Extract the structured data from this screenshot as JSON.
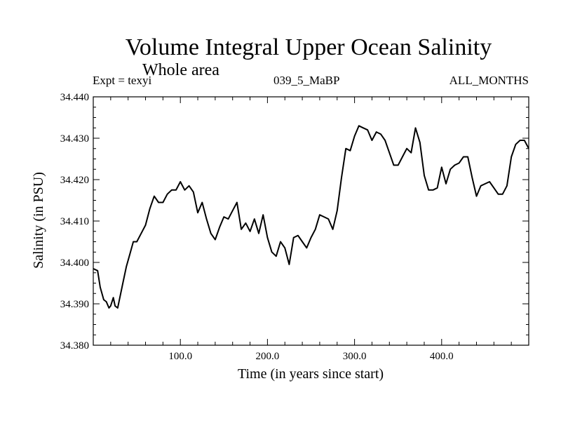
{
  "header": {
    "title": "Volume Integral Upper Ocean Salinity",
    "subtitle": "Whole area",
    "expt": "Expt = texyi",
    "run": "039_5_MaBP",
    "months": "ALL_MONTHS"
  },
  "chart_data": {
    "type": "line",
    "title": "Volume Integral Upper Ocean Salinity",
    "subtitle": "Whole area",
    "xlabel": "Time (in years since start)",
    "ylabel": "Salinity (in PSU)",
    "xlim": [
      0,
      500
    ],
    "ylim": [
      34.38,
      34.44
    ],
    "x_ticks": [
      100,
      200,
      300,
      400
    ],
    "x_tick_labels": [
      "100.0",
      "200.0",
      "300.0",
      "400.0"
    ],
    "y_ticks": [
      34.38,
      34.39,
      34.4,
      34.41,
      34.42,
      34.43,
      34.44
    ],
    "y_tick_labels": [
      "34.380",
      "34.390",
      "34.400",
      "34.410",
      "34.420",
      "34.430",
      "34.440"
    ],
    "grid": false,
    "legend": "none",
    "line_color": "#000000",
    "series": [
      {
        "x": [
          0,
          5,
          8,
          12,
          15,
          18,
          20,
          23,
          25,
          28,
          30,
          34,
          38,
          42,
          46,
          50,
          55,
          60,
          65,
          70,
          75,
          80,
          85,
          90,
          95,
          100,
          105,
          110,
          115,
          120,
          125,
          130,
          135,
          140,
          145,
          150,
          155,
          160,
          165,
          170,
          175,
          180,
          185,
          190,
          195,
          200,
          205,
          210,
          215,
          220,
          225,
          230,
          235,
          240,
          245,
          250,
          255,
          260,
          265,
          270,
          275,
          280,
          285,
          290,
          295,
          300,
          305,
          310,
          315,
          320,
          325,
          330,
          335,
          340,
          345,
          350,
          355,
          360,
          365,
          370,
          375,
          380,
          385,
          390,
          395,
          400,
          405,
          410,
          415,
          420,
          425,
          430,
          435,
          440,
          445,
          450,
          455,
          460,
          465,
          470,
          475,
          480,
          485,
          490,
          495,
          500
        ],
        "y": [
          34.3985,
          34.398,
          34.394,
          34.391,
          34.3905,
          34.389,
          34.3895,
          34.3915,
          34.3895,
          34.389,
          34.391,
          34.395,
          34.399,
          34.402,
          34.405,
          34.405,
          34.407,
          34.409,
          34.413,
          34.416,
          34.4145,
          34.4145,
          34.4165,
          34.4175,
          34.4175,
          34.4195,
          34.4175,
          34.4185,
          34.417,
          34.412,
          34.4145,
          34.4105,
          34.407,
          34.4055,
          34.4085,
          34.411,
          34.4105,
          34.4125,
          34.4145,
          34.408,
          34.4095,
          34.4075,
          34.4105,
          34.407,
          34.4115,
          34.406,
          34.4025,
          34.4015,
          34.405,
          34.4035,
          34.3995,
          34.406,
          34.4065,
          34.405,
          34.4035,
          34.406,
          34.408,
          34.4115,
          34.411,
          34.4105,
          34.408,
          34.4125,
          34.4205,
          34.4275,
          34.427,
          34.4305,
          34.433,
          34.4325,
          34.432,
          34.4295,
          34.4315,
          34.431,
          34.4295,
          34.4265,
          34.4235,
          34.4235,
          34.4255,
          34.4275,
          34.4265,
          34.4325,
          34.429,
          34.421,
          34.4175,
          34.4175,
          34.418,
          34.423,
          34.419,
          34.4225,
          34.4235,
          34.424,
          34.4255,
          34.4255,
          34.4205,
          34.416,
          34.4185,
          34.419,
          34.4195,
          34.418,
          34.4165,
          34.4165,
          34.4185,
          34.4255,
          34.4285,
          34.4295,
          34.4295,
          34.4275
        ]
      }
    ]
  }
}
